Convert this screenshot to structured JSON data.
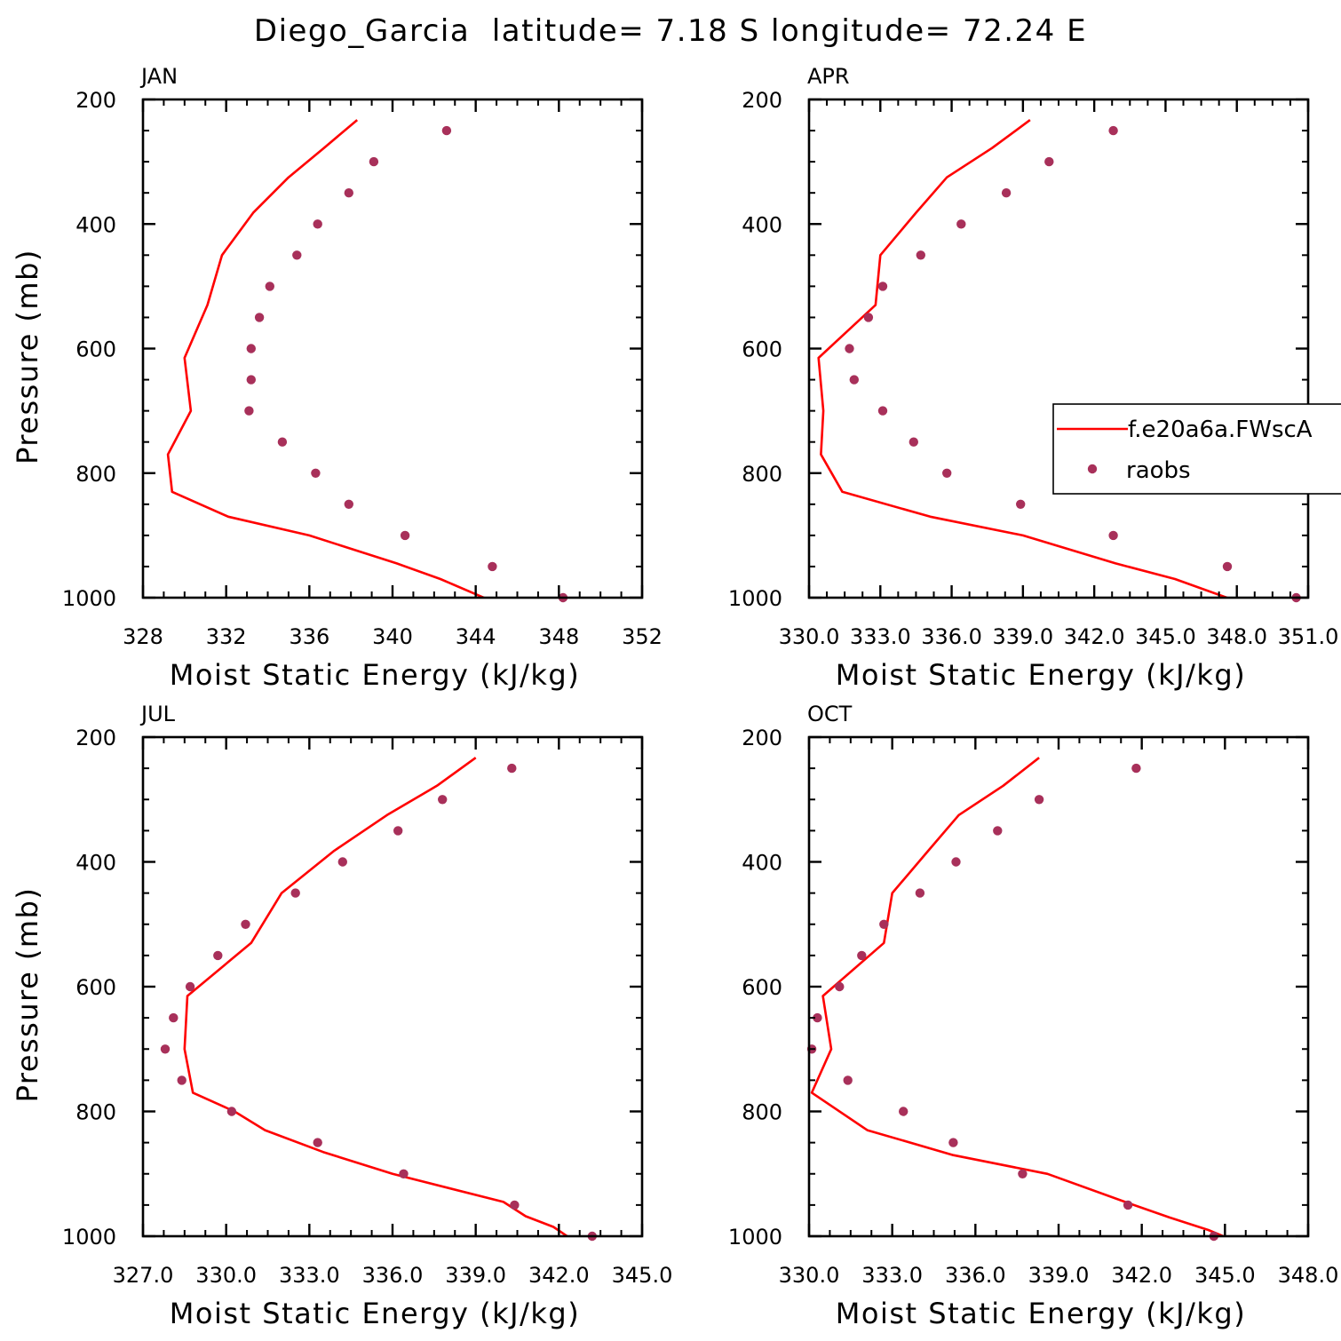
{
  "figure_title": "Diego_Garcia  latitude= 7.18 S longitude= 72.24 E",
  "colors": {
    "model": "#ff0000",
    "obs": "#a8305a"
  },
  "legend": {
    "model_label": "f.e20a6a.FWscA",
    "obs_label": "raobs"
  },
  "chart_data": [
    {
      "type": "line",
      "panel": "JAN",
      "title": "JAN",
      "xlabel": "Moist Static Energy (kJ/kg)",
      "ylabel": "Pressure (mb)",
      "xlim": [
        328,
        352
      ],
      "ylim": [
        1000,
        200
      ],
      "xticks": [
        328,
        332,
        336,
        340,
        344,
        348,
        352
      ],
      "xtick_labels": [
        "328",
        "332",
        "336",
        "340",
        "344",
        "348",
        "352"
      ],
      "yticks": [
        200,
        400,
        600,
        800,
        1000
      ],
      "ytick_labels": [
        "200",
        "400",
        "600",
        "800",
        "1000"
      ],
      "series": [
        {
          "name": "f.e20a6a.FWscA",
          "kind": "line",
          "x": [
            338.3,
            336.7,
            335.0,
            333.3,
            331.8,
            331.1,
            330.0,
            330.3,
            329.2,
            329.4,
            332.1,
            336.0,
            340.2,
            342.3,
            344.6
          ],
          "y": [
            233,
            278,
            325,
            382,
            450,
            530,
            615,
            700,
            770,
            830,
            870,
            900,
            945,
            970,
            1003
          ]
        },
        {
          "name": "raobs",
          "kind": "scatter",
          "x": [
            342.6,
            339.1,
            337.9,
            336.4,
            335.4,
            334.1,
            333.6,
            333.2,
            333.2,
            333.1,
            334.7,
            336.3,
            337.9,
            340.6,
            344.8,
            348.2
          ],
          "y": [
            250,
            300,
            350,
            400,
            450,
            500,
            550,
            600,
            650,
            700,
            750,
            800,
            850,
            900,
            950,
            1000
          ]
        }
      ]
    },
    {
      "type": "line",
      "panel": "APR",
      "title": "APR",
      "xlabel": "Moist Static Energy (kJ/kg)",
      "ylabel": "",
      "xlim": [
        330.0,
        351.0
      ],
      "ylim": [
        1000,
        200
      ],
      "xticks": [
        330.0,
        333.0,
        336.0,
        339.0,
        342.0,
        345.0,
        348.0,
        351.0
      ],
      "xtick_labels": [
        "330.0",
        "333.0",
        "336.0",
        "339.0",
        "342.0",
        "345.0",
        "348.0",
        "351.0"
      ],
      "yticks": [
        200,
        400,
        600,
        800,
        1000
      ],
      "ytick_labels": [
        "200",
        "400",
        "600",
        "800",
        "1000"
      ],
      "series": [
        {
          "name": "f.e20a6a.FWscA",
          "kind": "line",
          "x": [
            339.3,
            337.7,
            335.8,
            334.5,
            333.0,
            332.8,
            330.4,
            330.6,
            330.5,
            331.4,
            335.1,
            339.0,
            342.9,
            345.4,
            347.8
          ],
          "y": [
            233,
            278,
            325,
            382,
            450,
            530,
            615,
            700,
            770,
            830,
            870,
            900,
            945,
            970,
            1003
          ]
        },
        {
          "name": "raobs",
          "kind": "scatter",
          "x": [
            342.8,
            340.1,
            338.3,
            336.4,
            334.7,
            333.1,
            332.5,
            331.7,
            331.9,
            333.1,
            334.4,
            335.8,
            338.9,
            342.8,
            347.6,
            350.5
          ],
          "y": [
            250,
            300,
            350,
            400,
            450,
            500,
            550,
            600,
            650,
            700,
            750,
            800,
            850,
            900,
            950,
            1000
          ]
        }
      ]
    },
    {
      "type": "line",
      "panel": "JUL",
      "title": "JUL",
      "xlabel": "Moist Static Energy (kJ/kg)",
      "ylabel": "Pressure (mb)",
      "xlim": [
        327.0,
        345.0
      ],
      "ylim": [
        1000,
        200
      ],
      "xticks": [
        327.0,
        330.0,
        333.0,
        336.0,
        339.0,
        342.0,
        345.0
      ],
      "xtick_labels": [
        "327.0",
        "330.0",
        "333.0",
        "336.0",
        "339.0",
        "342.0",
        "345.0"
      ],
      "yticks": [
        200,
        400,
        600,
        800,
        1000
      ],
      "ytick_labels": [
        "200",
        "400",
        "600",
        "800",
        "1000"
      ],
      "series": [
        {
          "name": "f.e20a6a.FWscA",
          "kind": "line",
          "x": [
            339.0,
            337.6,
            335.8,
            333.9,
            332.0,
            330.9,
            328.6,
            328.5,
            328.8,
            330.3,
            331.4,
            333.5,
            336.0,
            340.0,
            340.8,
            341.8,
            342.4
          ],
          "y": [
            233,
            278,
            325,
            382,
            450,
            530,
            615,
            700,
            770,
            800,
            830,
            865,
            900,
            945,
            968,
            985,
            1003
          ]
        },
        {
          "name": "raobs",
          "kind": "scatter",
          "x": [
            340.3,
            337.8,
            336.2,
            334.2,
            332.5,
            330.7,
            329.7,
            328.7,
            328.1,
            327.8,
            328.4,
            330.2,
            333.3,
            336.4,
            340.4,
            343.2
          ],
          "y": [
            250,
            300,
            350,
            400,
            450,
            500,
            550,
            600,
            650,
            700,
            750,
            800,
            850,
            900,
            950,
            1000
          ]
        }
      ]
    },
    {
      "type": "line",
      "panel": "OCT",
      "title": "OCT",
      "xlabel": "Moist Static Energy (kJ/kg)",
      "ylabel": "",
      "xlim": [
        330.0,
        348.0
      ],
      "ylim": [
        1000,
        200
      ],
      "xticks": [
        330.0,
        333.0,
        336.0,
        339.0,
        342.0,
        345.0,
        348.0
      ],
      "xtick_labels": [
        "330.0",
        "333.0",
        "336.0",
        "339.0",
        "342.0",
        "345.0",
        "348.0"
      ],
      "yticks": [
        200,
        400,
        600,
        800,
        1000
      ],
      "ytick_labels": [
        "200",
        "400",
        "600",
        "800",
        "1000"
      ],
      "series": [
        {
          "name": "f.e20a6a.FWscA",
          "kind": "line",
          "x": [
            338.3,
            337.0,
            335.4,
            334.3,
            333.0,
            332.7,
            330.5,
            330.8,
            330.1,
            332.1,
            335.2,
            338.6,
            341.4,
            343.0,
            344.4,
            345.1
          ],
          "y": [
            233,
            278,
            325,
            382,
            450,
            530,
            615,
            700,
            770,
            830,
            870,
            900,
            945,
            970,
            990,
            1003
          ]
        },
        {
          "name": "raobs",
          "kind": "scatter",
          "x": [
            341.8,
            338.3,
            336.8,
            335.3,
            334.0,
            332.7,
            331.9,
            331.1,
            330.3,
            330.1,
            331.4,
            333.4,
            335.2,
            337.7,
            341.5,
            344.6
          ],
          "y": [
            250,
            300,
            350,
            400,
            450,
            500,
            550,
            600,
            650,
            700,
            750,
            800,
            850,
            900,
            950,
            1000
          ]
        }
      ]
    }
  ]
}
